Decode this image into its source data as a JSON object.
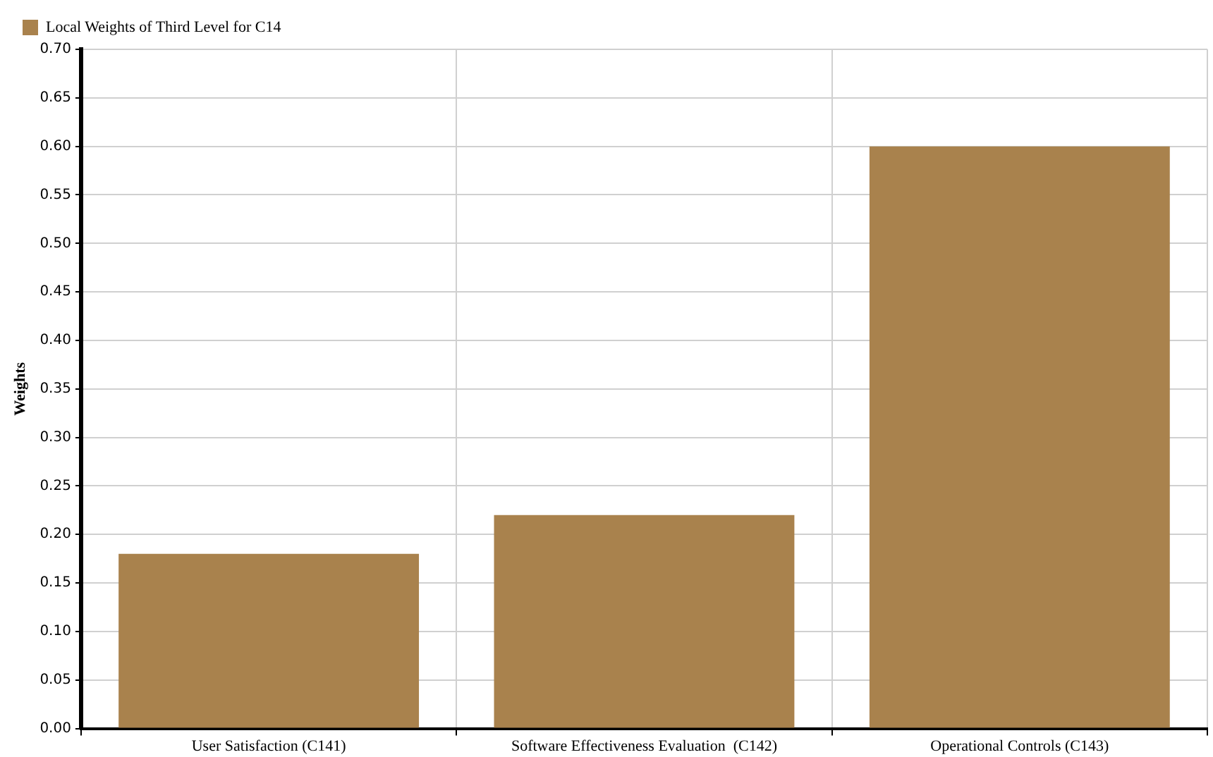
{
  "chart_data": {
    "type": "bar",
    "categories": [
      "User Satisfaction (C141)",
      "Software Effectiveness Evaluation  (C142)",
      "Operational Controls (C143)"
    ],
    "series": [
      {
        "name": "Local Weights of Third Level for C14",
        "color": "#a9824d",
        "values": [
          0.18,
          0.22,
          0.6
        ]
      }
    ],
    "ylabel": "Weights",
    "ylim": [
      0,
      0.7
    ],
    "yticks": [
      {
        "value": 0,
        "label": "0.00"
      },
      {
        "value": 0.05,
        "label": "0.05"
      },
      {
        "value": 0.1,
        "label": "0.10"
      },
      {
        "value": 0.15,
        "label": "0.15"
      },
      {
        "value": 0.2,
        "label": "0.20"
      },
      {
        "value": 0.25,
        "label": "0.25"
      },
      {
        "value": 0.3,
        "label": "0.30"
      },
      {
        "value": 0.35,
        "label": "0.35"
      },
      {
        "value": 0.4,
        "label": "0.40"
      },
      {
        "value": 0.45,
        "label": "0.45"
      },
      {
        "value": 0.5,
        "label": "0.50"
      },
      {
        "value": 0.55,
        "label": "0.55"
      },
      {
        "value": 0.6,
        "label": "0.60"
      },
      {
        "value": 0.65,
        "label": "0.65"
      },
      {
        "value": 0.7,
        "label": "0.70"
      }
    ],
    "grid": true,
    "legend": "top left"
  }
}
